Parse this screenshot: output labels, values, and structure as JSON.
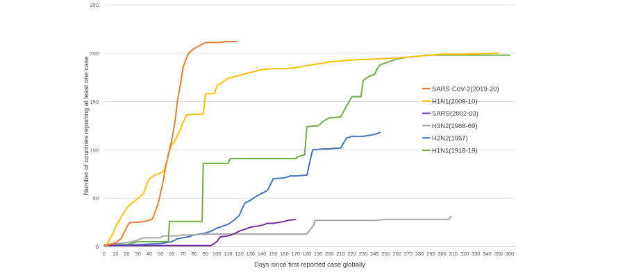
{
  "chart_data": {
    "type": "line",
    "xlabel": "Days since first reported case globally",
    "ylabel": "Number of countries reporting at least one case",
    "xlim": [
      0,
      365
    ],
    "ylim": [
      0,
      250
    ],
    "x_ticks": [
      0,
      10,
      20,
      30,
      40,
      50,
      60,
      70,
      80,
      90,
      100,
      110,
      120,
      130,
      140,
      150,
      160,
      170,
      180,
      190,
      200,
      210,
      220,
      230,
      240,
      250,
      260,
      270,
      280,
      290,
      300,
      310,
      320,
      330,
      340,
      350,
      360
    ],
    "y_ticks": [
      0,
      50,
      100,
      150,
      200,
      250
    ],
    "grid": "horizontal",
    "legend_position": "right",
    "series": [
      {
        "name": "SARS-CoV-2(2019-20)",
        "color": "#ed7d31",
        "points": [
          [
            0,
            1
          ],
          [
            5,
            2
          ],
          [
            10,
            4
          ],
          [
            15,
            8
          ],
          [
            18,
            15
          ],
          [
            20,
            20
          ],
          [
            22,
            24
          ],
          [
            25,
            25
          ],
          [
            30,
            25
          ],
          [
            35,
            26
          ],
          [
            40,
            27
          ],
          [
            43,
            29
          ],
          [
            45,
            35
          ],
          [
            48,
            45
          ],
          [
            50,
            55
          ],
          [
            52,
            65
          ],
          [
            55,
            85
          ],
          [
            57,
            95
          ],
          [
            60,
            110
          ],
          [
            63,
            130
          ],
          [
            65,
            150
          ],
          [
            68,
            170
          ],
          [
            70,
            185
          ],
          [
            73,
            195
          ],
          [
            75,
            200
          ],
          [
            78,
            203
          ],
          [
            80,
            205
          ],
          [
            85,
            208
          ],
          [
            90,
            211
          ],
          [
            100,
            211
          ],
          [
            110,
            212
          ],
          [
            118,
            212
          ]
        ]
      },
      {
        "name": "H1N1(2009-10)",
        "color": "#ffc000",
        "points": [
          [
            0,
            1
          ],
          [
            3,
            3
          ],
          [
            5,
            8
          ],
          [
            8,
            14
          ],
          [
            10,
            20
          ],
          [
            15,
            30
          ],
          [
            20,
            40
          ],
          [
            25,
            45
          ],
          [
            30,
            50
          ],
          [
            35,
            55
          ],
          [
            38,
            65
          ],
          [
            40,
            70
          ],
          [
            45,
            74
          ],
          [
            50,
            76
          ],
          [
            53,
            78
          ],
          [
            55,
            85
          ],
          [
            58,
            100
          ],
          [
            60,
            105
          ],
          [
            63,
            110
          ],
          [
            65,
            115
          ],
          [
            68,
            122
          ],
          [
            70,
            128
          ],
          [
            73,
            136
          ],
          [
            80,
            137
          ],
          [
            88,
            137
          ],
          [
            90,
            158
          ],
          [
            98,
            158
          ],
          [
            100,
            166
          ],
          [
            105,
            170
          ],
          [
            110,
            174
          ],
          [
            120,
            177
          ],
          [
            130,
            180
          ],
          [
            140,
            183
          ],
          [
            150,
            184
          ],
          [
            160,
            184
          ],
          [
            170,
            185
          ],
          [
            180,
            187
          ],
          [
            190,
            189
          ],
          [
            200,
            191
          ],
          [
            210,
            192
          ],
          [
            220,
            193
          ],
          [
            240,
            194
          ],
          [
            260,
            195
          ],
          [
            280,
            197
          ],
          [
            300,
            199
          ],
          [
            320,
            199
          ],
          [
            350,
            200
          ]
        ]
      },
      {
        "name": "SARS(2002-03)",
        "color": "#7030a0",
        "points": [
          [
            0,
            1
          ],
          [
            30,
            1
          ],
          [
            60,
            1
          ],
          [
            90,
            1
          ],
          [
            95,
            1
          ],
          [
            100,
            5
          ],
          [
            103,
            10
          ],
          [
            110,
            11
          ],
          [
            115,
            13
          ],
          [
            120,
            16
          ],
          [
            125,
            18
          ],
          [
            130,
            20
          ],
          [
            140,
            22
          ],
          [
            145,
            24
          ],
          [
            150,
            24
          ],
          [
            155,
            25
          ],
          [
            160,
            26
          ],
          [
            163,
            27
          ],
          [
            170,
            28
          ]
        ]
      },
      {
        "name": "H3N2(1968-69)",
        "color": "#a5a5a5",
        "points": [
          [
            0,
            2
          ],
          [
            10,
            3
          ],
          [
            20,
            4
          ],
          [
            28,
            6
          ],
          [
            35,
            9
          ],
          [
            50,
            9
          ],
          [
            52,
            11
          ],
          [
            65,
            11
          ],
          [
            70,
            12
          ],
          [
            80,
            12
          ],
          [
            90,
            13
          ],
          [
            180,
            13
          ],
          [
            186,
            22
          ],
          [
            187,
            27
          ],
          [
            240,
            27
          ],
          [
            250,
            28
          ],
          [
            300,
            28
          ],
          [
            306,
            28
          ],
          [
            308,
            31
          ]
        ]
      },
      {
        "name": "H2N2(1957)",
        "color": "#4472c4",
        "points": [
          [
            0,
            1
          ],
          [
            30,
            2
          ],
          [
            50,
            3
          ],
          [
            60,
            5
          ],
          [
            65,
            8
          ],
          [
            75,
            10
          ],
          [
            80,
            12
          ],
          [
            90,
            14
          ],
          [
            95,
            16
          ],
          [
            100,
            19
          ],
          [
            110,
            23
          ],
          [
            115,
            27
          ],
          [
            120,
            32
          ],
          [
            122,
            38
          ],
          [
            125,
            45
          ],
          [
            130,
            48
          ],
          [
            135,
            52
          ],
          [
            140,
            55
          ],
          [
            145,
            58
          ],
          [
            150,
            70
          ],
          [
            160,
            71
          ],
          [
            165,
            73
          ],
          [
            170,
            73
          ],
          [
            180,
            74
          ],
          [
            185,
            100
          ],
          [
            195,
            101
          ],
          [
            200,
            101
          ],
          [
            210,
            102
          ],
          [
            215,
            112
          ],
          [
            220,
            114
          ],
          [
            230,
            114
          ],
          [
            235,
            115
          ],
          [
            240,
            116
          ],
          [
            245,
            118
          ]
        ]
      },
      {
        "name": "H1N1(1918-19)",
        "color": "#70ad47",
        "points": [
          [
            0,
            2
          ],
          [
            10,
            2
          ],
          [
            20,
            2
          ],
          [
            30,
            5
          ],
          [
            40,
            5
          ],
          [
            50,
            5
          ],
          [
            57,
            5
          ],
          [
            58,
            26
          ],
          [
            87,
            26
          ],
          [
            88,
            86
          ],
          [
            110,
            86
          ],
          [
            112,
            91
          ],
          [
            130,
            91
          ],
          [
            170,
            91
          ],
          [
            172,
            93
          ],
          [
            178,
            95
          ],
          [
            180,
            124
          ],
          [
            190,
            125
          ],
          [
            195,
            130
          ],
          [
            200,
            133
          ],
          [
            210,
            134
          ],
          [
            215,
            145
          ],
          [
            220,
            155
          ],
          [
            228,
            155
          ],
          [
            230,
            172
          ],
          [
            235,
            176
          ],
          [
            240,
            178
          ],
          [
            243,
            185
          ],
          [
            245,
            188
          ],
          [
            250,
            190
          ],
          [
            255,
            192
          ],
          [
            260,
            194
          ],
          [
            270,
            196
          ],
          [
            280,
            197
          ],
          [
            285,
            198
          ],
          [
            290,
            198
          ],
          [
            300,
            198
          ],
          [
            320,
            198
          ],
          [
            360,
            198
          ]
        ]
      }
    ]
  }
}
